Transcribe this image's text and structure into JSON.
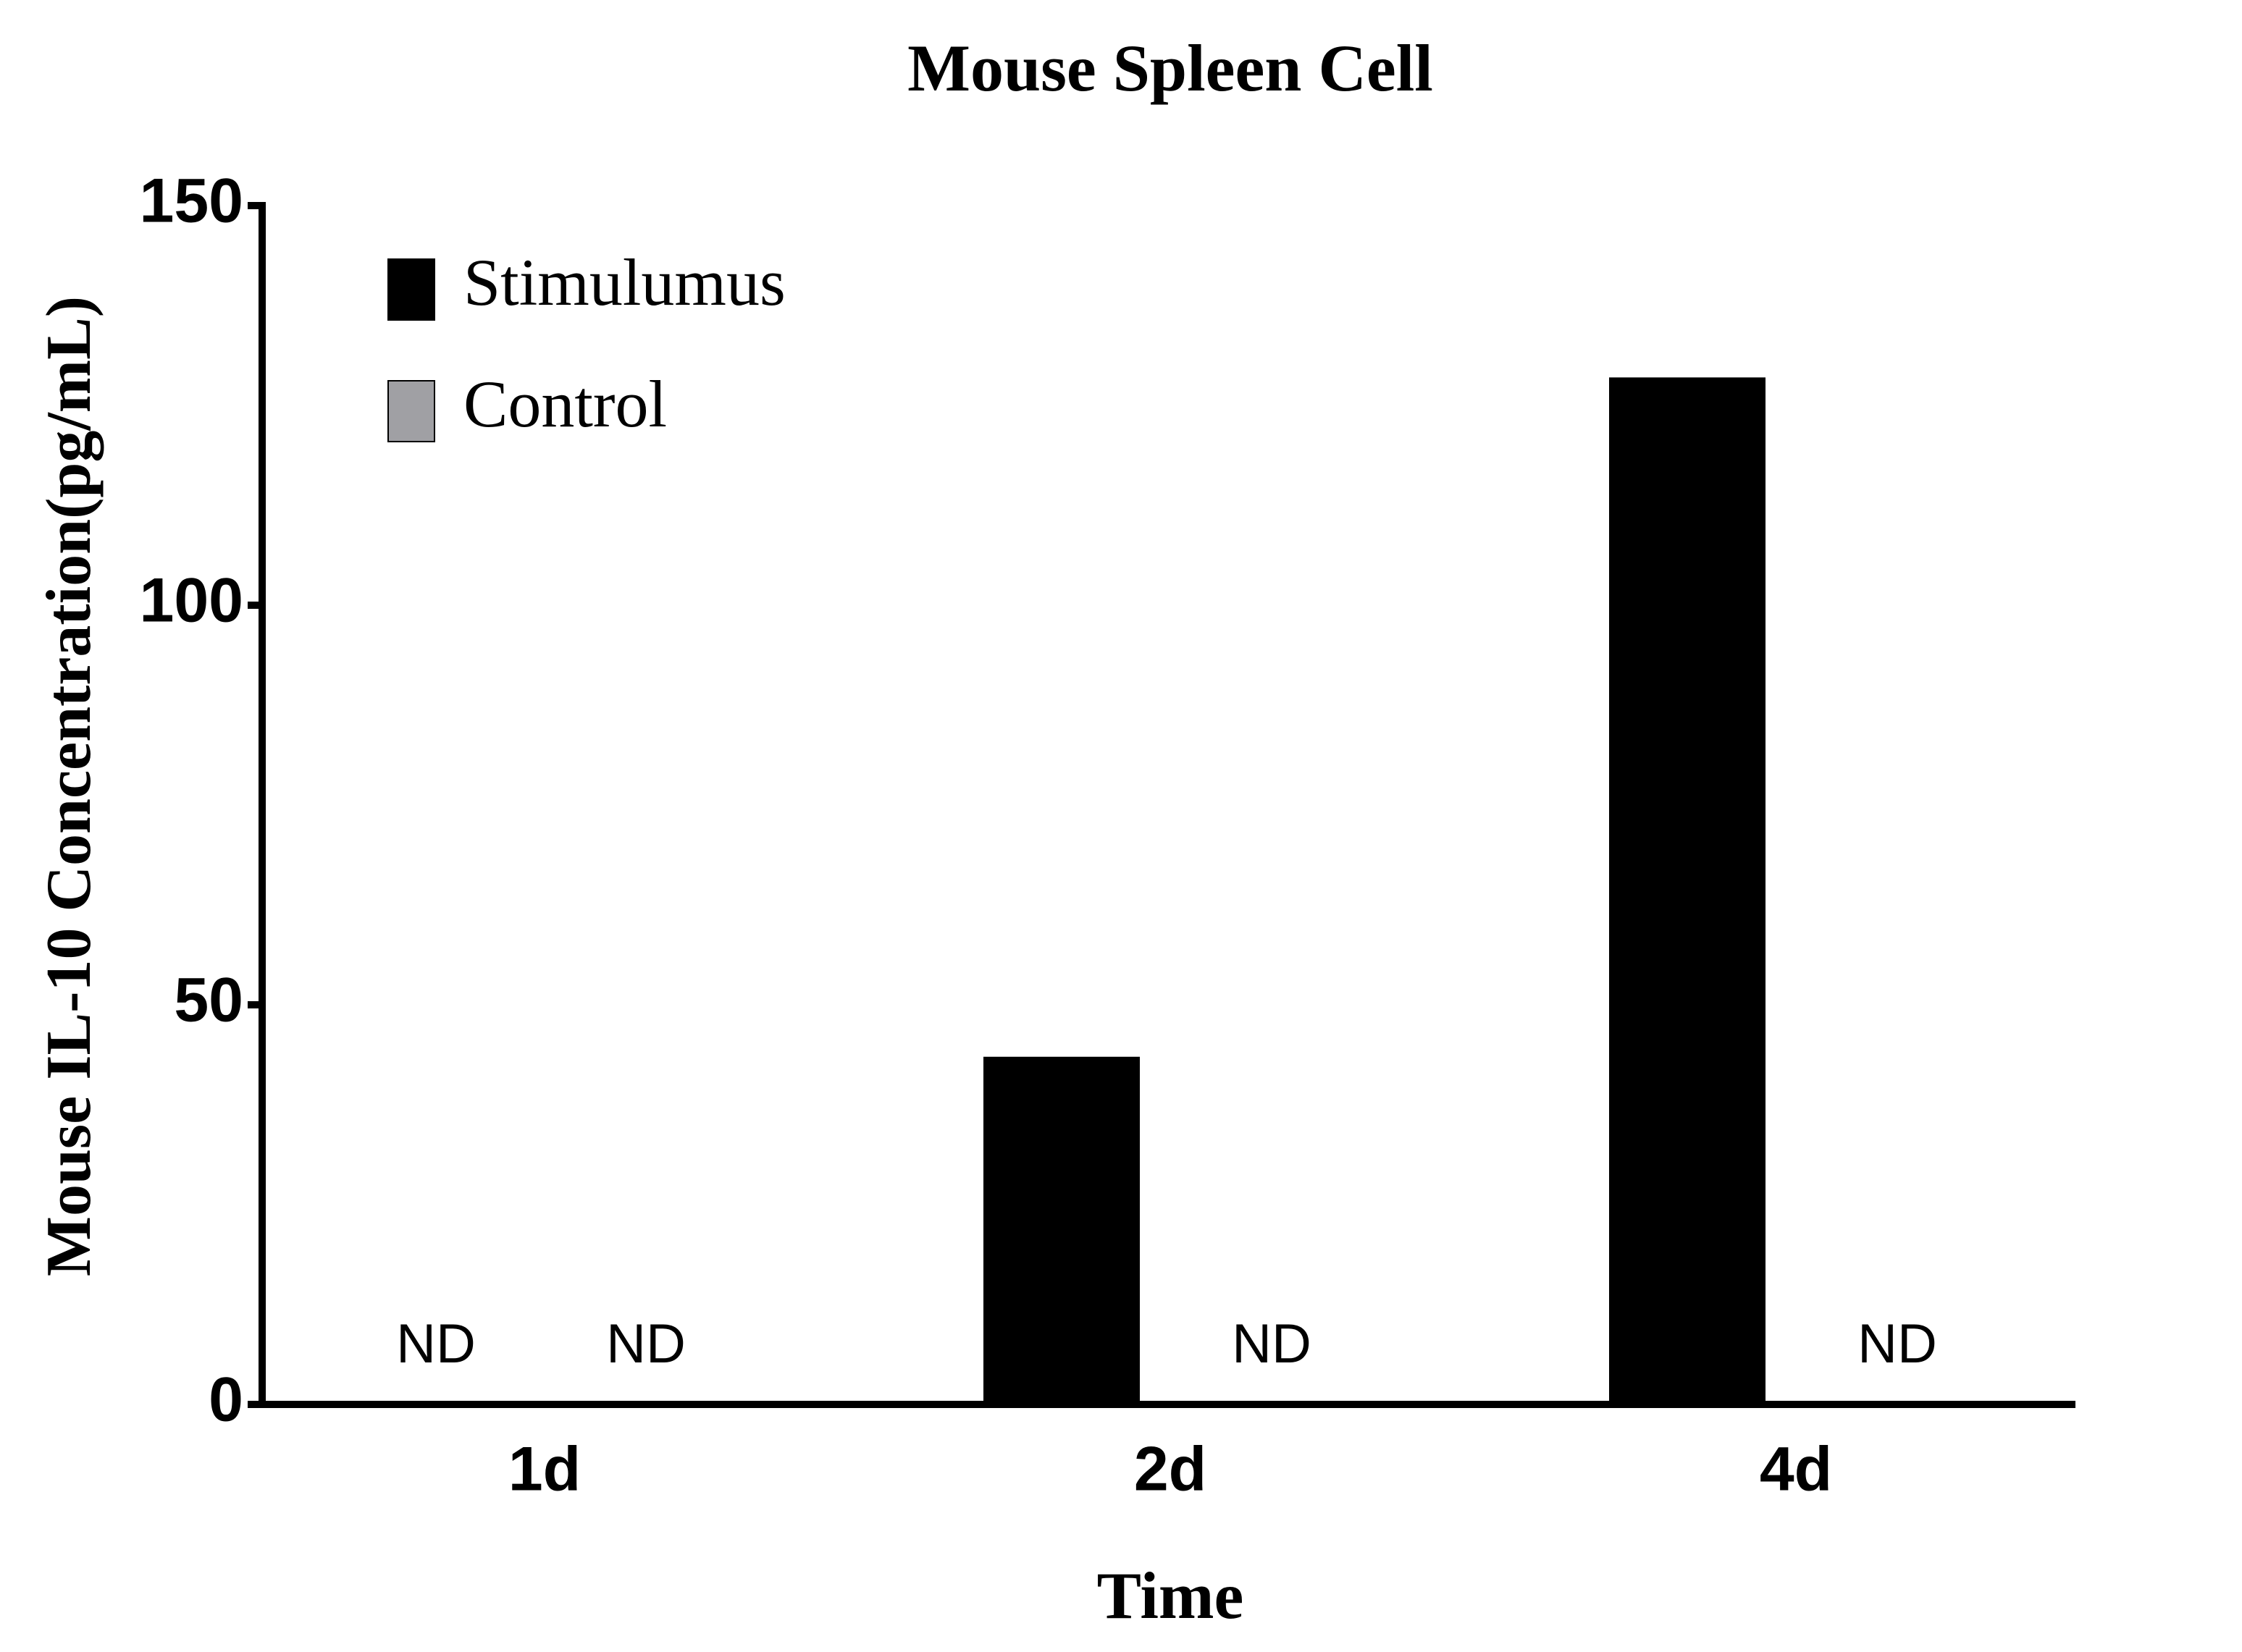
{
  "chart_data": {
    "type": "bar",
    "title": "Mouse Spleen Cell",
    "x_label": "Time",
    "y_label": "Mouse IL-10 Concentration(pg/mL)",
    "categories": [
      "1d",
      "2d",
      "4d"
    ],
    "series": [
      {
        "name": "Stimulumus",
        "color": "#000000",
        "values": [
          null,
          43.5,
          128.5
        ],
        "value_labels": [
          "ND",
          null,
          null
        ]
      },
      {
        "name": "Control",
        "color": "#a0a0a4",
        "values": [
          null,
          null,
          null
        ],
        "value_labels": [
          "ND",
          "ND",
          "ND"
        ]
      }
    ],
    "ylim": [
      0,
      150
    ],
    "yticks": [
      0,
      50,
      100,
      150
    ],
    "grid": false,
    "legend": "top-left"
  }
}
